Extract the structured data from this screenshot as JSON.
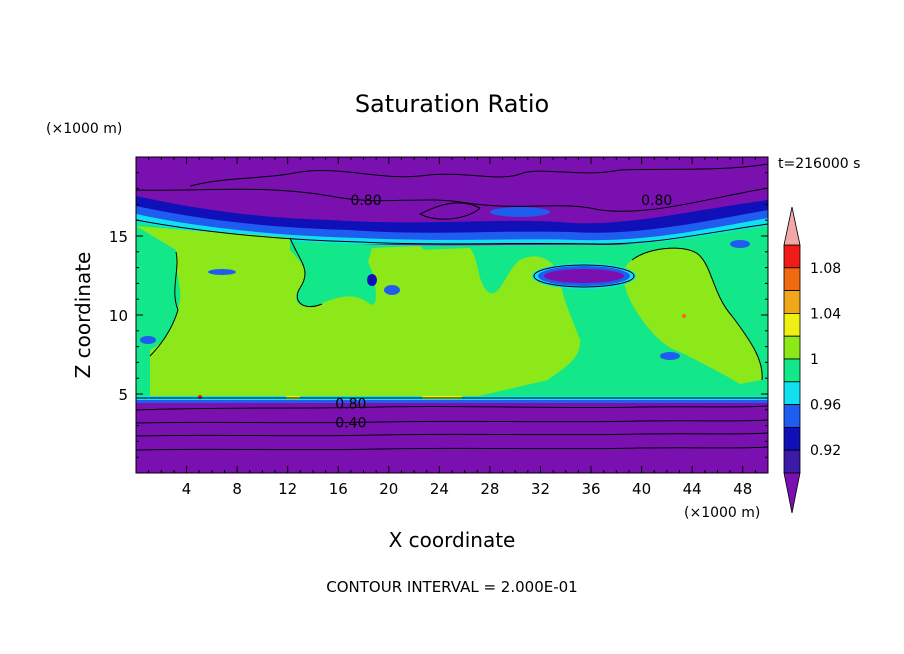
{
  "chart_data": {
    "type": "heatmap",
    "title": "Saturation Ratio",
    "xlabel": "X coordinate",
    "ylabel": "Z coordinate",
    "x_unit": "(×1000 m)",
    "y_unit": "(×1000 m)",
    "time_label": "t=216000 s",
    "footer": "CONTOUR INTERVAL = 2.000E-01",
    "xlim": [
      0,
      50
    ],
    "ylim": [
      0,
      20
    ],
    "x_ticks": [
      4,
      8,
      12,
      16,
      20,
      24,
      28,
      32,
      36,
      40,
      44,
      48
    ],
    "y_ticks": [
      5,
      10,
      15
    ],
    "contour_labels": [
      {
        "text": "0.80",
        "x": 18.2,
        "y": 17.1
      },
      {
        "text": "0.80",
        "x": 41.2,
        "y": 17.1
      },
      {
        "text": "0.80",
        "x": 17.0,
        "y": 4.2
      },
      {
        "text": "0.40",
        "x": 17.0,
        "y": 3.0
      }
    ],
    "colorbar": {
      "tick_labels": [
        "0.92",
        "0.96",
        "1",
        "1.04",
        "1.08"
      ],
      "levels": [
        0.9,
        0.92,
        0.94,
        0.96,
        0.98,
        1.0,
        1.02,
        1.04,
        1.06,
        1.08,
        1.1
      ],
      "colors": [
        "#7b10b0",
        "#3a1aa6",
        "#1010b8",
        "#1f5cf0",
        "#12e0f0",
        "#12e88a",
        "#8de81a",
        "#f0f014",
        "#f0a81a",
        "#f06a10",
        "#f01c18",
        "#f0a8a8"
      ]
    },
    "layers": [
      {
        "from": 0,
        "to": 4.6,
        "value": "below 0.92"
      },
      {
        "from": 4.6,
        "to": 15.5,
        "value": "0.98 to 1.02"
      },
      {
        "from": 15.5,
        "to": 20,
        "value": "below 0.92"
      }
    ]
  }
}
